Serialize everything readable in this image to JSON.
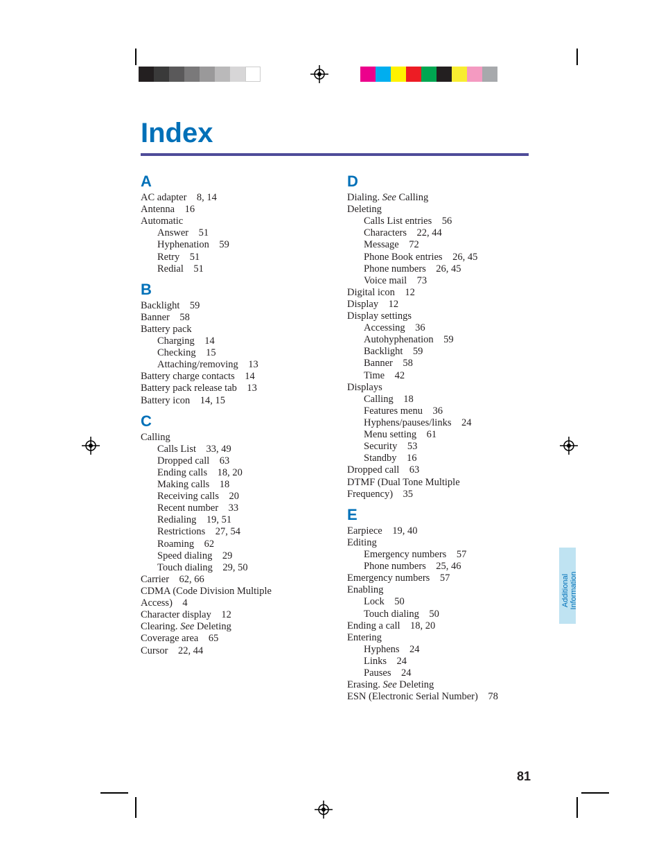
{
  "page": {
    "title": "Index",
    "pagenum": "81",
    "tab_line1": "Additional",
    "tab_line2": "Information",
    "rule_color": "#4f4c99",
    "title_color": "#0070b8",
    "tab_bg": "#bfe3f2"
  },
  "registration": {
    "gray_swatches": [
      "#231f20",
      "#3a3a3a",
      "#5a595a",
      "#7a797a",
      "#9a999a",
      "#bab9ba",
      "#d7d6d7",
      "#ffffff"
    ],
    "color_swatches": [
      "#ec008c",
      "#00aeef",
      "#fff200",
      "#ed1c24",
      "#00a651",
      "#231f20",
      "#f8ed31",
      "#f49ac1",
      "#a7a9ac"
    ],
    "swatch_w": 22,
    "swatch_h": 22
  },
  "index": {
    "col1": [
      {
        "type": "letter",
        "text": "A"
      },
      {
        "type": "line",
        "text": "AC adapter    8, 14"
      },
      {
        "type": "line",
        "text": "Antenna    16"
      },
      {
        "type": "line",
        "text": "Automatic"
      },
      {
        "type": "sub",
        "text": "Answer    51"
      },
      {
        "type": "sub",
        "text": "Hyphenation    59"
      },
      {
        "type": "sub",
        "text": "Retry    51"
      },
      {
        "type": "sub",
        "text": "Redial    51"
      },
      {
        "type": "letter",
        "text": "B"
      },
      {
        "type": "line",
        "text": "Backlight    59"
      },
      {
        "type": "line",
        "text": "Banner    58"
      },
      {
        "type": "line",
        "text": "Battery pack"
      },
      {
        "type": "sub",
        "text": "Charging    14"
      },
      {
        "type": "sub",
        "text": "Checking    15"
      },
      {
        "type": "sub",
        "text": "Attaching/removing    13"
      },
      {
        "type": "line",
        "text": "Battery charge contacts    14"
      },
      {
        "type": "line",
        "text": "Battery pack release tab    13"
      },
      {
        "type": "line",
        "text": "Battery icon    14, 15"
      },
      {
        "type": "letter",
        "text": "C"
      },
      {
        "type": "line",
        "text": "Calling"
      },
      {
        "type": "sub",
        "text": "Calls List    33, 49"
      },
      {
        "type": "sub",
        "text": "Dropped call    63"
      },
      {
        "type": "sub",
        "text": "Ending calls    18, 20"
      },
      {
        "type": "sub",
        "text": "Making calls    18"
      },
      {
        "type": "sub",
        "text": "Receiving calls    20"
      },
      {
        "type": "sub",
        "text": "Recent number    33"
      },
      {
        "type": "sub",
        "text": "Redialing    19, 51"
      },
      {
        "type": "sub",
        "text": "Restrictions    27, 54"
      },
      {
        "type": "sub",
        "text": "Roaming    62"
      },
      {
        "type": "sub",
        "text": "Speed dialing    29"
      },
      {
        "type": "sub",
        "text": "Touch dialing    29, 50"
      },
      {
        "type": "line",
        "text": "Carrier    62, 66"
      },
      {
        "type": "line",
        "text": "CDMA (Code Division Multiple"
      },
      {
        "type": "line",
        "text": "Access)    4"
      },
      {
        "type": "line",
        "text": "Character display    12"
      },
      {
        "type": "see",
        "text": "Clearing. See Deleting"
      },
      {
        "type": "line",
        "text": "Coverage area    65"
      },
      {
        "type": "line",
        "text": "Cursor    22, 44"
      }
    ],
    "col2": [
      {
        "type": "letter",
        "text": "D"
      },
      {
        "type": "see",
        "text": "Dialing. See Calling"
      },
      {
        "type": "line",
        "text": "Deleting"
      },
      {
        "type": "sub",
        "text": "Calls List entries    56"
      },
      {
        "type": "sub",
        "text": "Characters    22, 44"
      },
      {
        "type": "sub",
        "text": "Message    72"
      },
      {
        "type": "sub",
        "text": "Phone Book entries    26, 45"
      },
      {
        "type": "sub",
        "text": "Phone numbers    26, 45"
      },
      {
        "type": "sub",
        "text": "Voice mail    73"
      },
      {
        "type": "line",
        "text": "Digital icon    12"
      },
      {
        "type": "line",
        "text": "Display    12"
      },
      {
        "type": "line",
        "text": "Display settings"
      },
      {
        "type": "sub",
        "text": "Accessing    36"
      },
      {
        "type": "sub",
        "text": "Autohyphenation    59"
      },
      {
        "type": "sub",
        "text": "Backlight    59"
      },
      {
        "type": "sub",
        "text": "Banner    58"
      },
      {
        "type": "sub",
        "text": "Time    42"
      },
      {
        "type": "line",
        "text": "Displays"
      },
      {
        "type": "sub",
        "text": "Calling    18"
      },
      {
        "type": "sub",
        "text": "Features menu    36"
      },
      {
        "type": "sub",
        "text": "Hyphens/pauses/links    24"
      },
      {
        "type": "sub",
        "text": "Menu setting    61"
      },
      {
        "type": "sub",
        "text": "Security    53"
      },
      {
        "type": "sub",
        "text": "Standby    16"
      },
      {
        "type": "line",
        "text": "Dropped call    63"
      },
      {
        "type": "line",
        "text": "DTMF (Dual Tone Multiple"
      },
      {
        "type": "line",
        "text": "Frequency)    35"
      },
      {
        "type": "letter",
        "text": "E"
      },
      {
        "type": "line",
        "text": "Earpiece    19, 40"
      },
      {
        "type": "line",
        "text": "Editing"
      },
      {
        "type": "sub",
        "text": "Emergency numbers    57"
      },
      {
        "type": "sub",
        "text": "Phone numbers    25, 46"
      },
      {
        "type": "line",
        "text": "Emergency numbers    57"
      },
      {
        "type": "line",
        "text": "Enabling"
      },
      {
        "type": "sub",
        "text": "Lock    50"
      },
      {
        "type": "sub",
        "text": "Touch dialing    50"
      },
      {
        "type": "line",
        "text": "Ending a call    18, 20"
      },
      {
        "type": "line",
        "text": "Entering"
      },
      {
        "type": "sub",
        "text": "Hyphens    24"
      },
      {
        "type": "sub",
        "text": "Links    24"
      },
      {
        "type": "sub",
        "text": "Pauses    24"
      },
      {
        "type": "see",
        "text": "Erasing. See Deleting"
      },
      {
        "type": "line",
        "text": "ESN (Electronic Serial Number)    78"
      }
    ]
  }
}
